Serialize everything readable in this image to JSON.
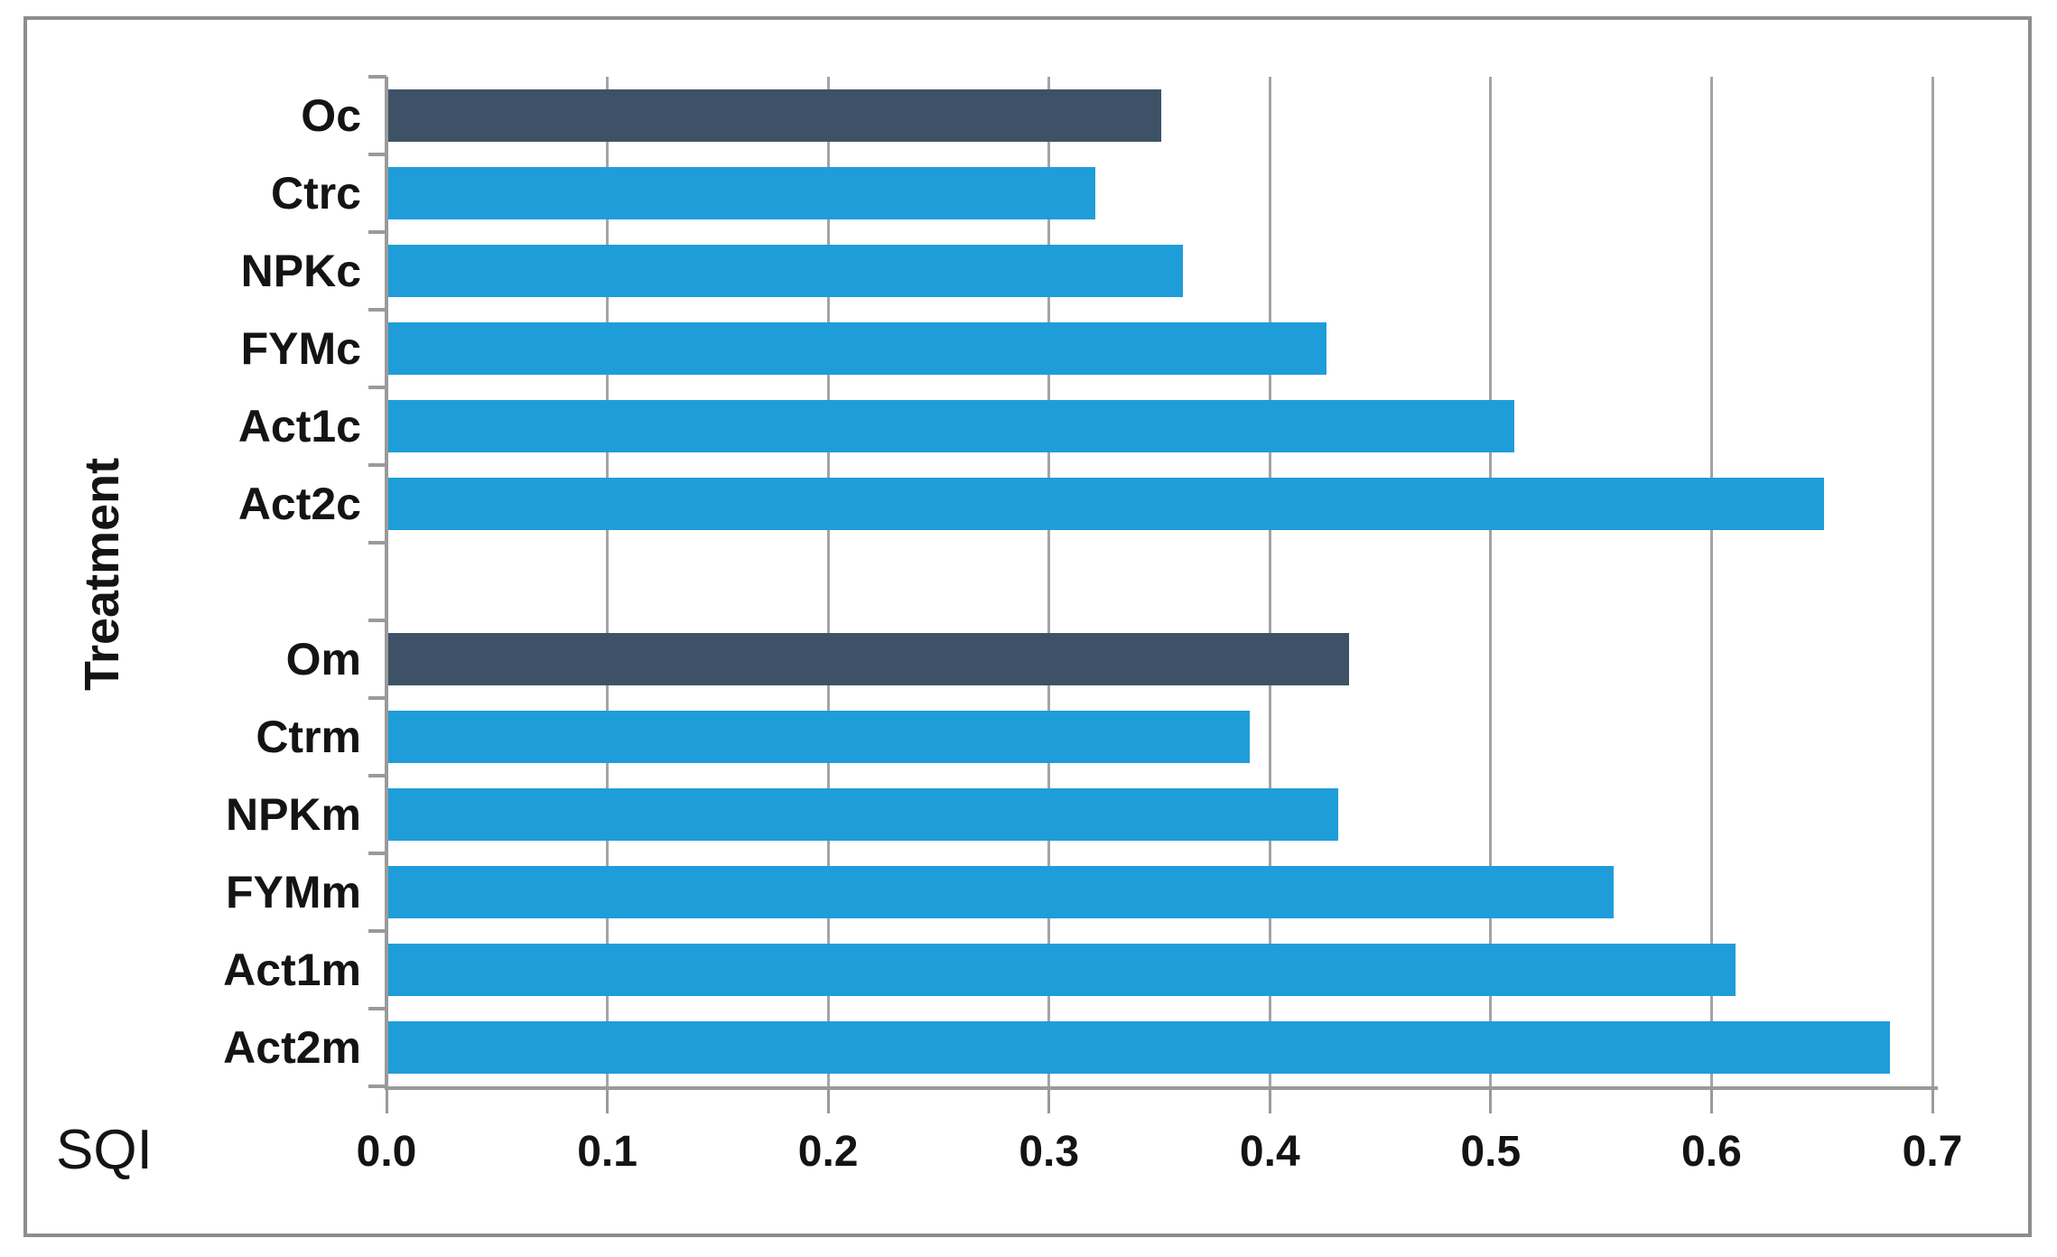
{
  "chart_data": {
    "type": "bar",
    "orientation": "horizontal",
    "title": "",
    "xlabel": "SQI",
    "ylabel": "Treatment",
    "categories": [
      "Oc",
      "Ctrc",
      "NPKc",
      "FYMc",
      "Act1c",
      "Act2c",
      "",
      "Om",
      "Ctrm",
      "NPKm",
      "FYMm",
      "Act1m",
      "Act2m"
    ],
    "values": [
      0.35,
      0.32,
      0.36,
      0.425,
      0.51,
      0.65,
      null,
      0.435,
      0.39,
      0.43,
      0.555,
      0.61,
      0.68
    ],
    "bar_colors": [
      "#3D5266",
      "#1F9DD9",
      "#1F9DD9",
      "#1F9DD9",
      "#1F9DD9",
      "#1F9DD9",
      null,
      "#3D5266",
      "#1F9DD9",
      "#1F9DD9",
      "#1F9DD9",
      "#1F9DD9",
      "#1F9DD9"
    ],
    "xlim": [
      0,
      0.7
    ],
    "xtick_labels": [
      "0.0",
      "0.1",
      "0.2",
      "0.3",
      "0.4",
      "0.5",
      "0.6",
      "0.7"
    ],
    "grid": "vertical-major-on",
    "legend": "none",
    "colors": {
      "bar_default": "#1F9DD9",
      "bar_highlight": "#3D5266",
      "axis": "#9A9A9A",
      "gridline": "#A4A4A4",
      "frame": "#8D8D8D",
      "text": "#141414"
    }
  }
}
